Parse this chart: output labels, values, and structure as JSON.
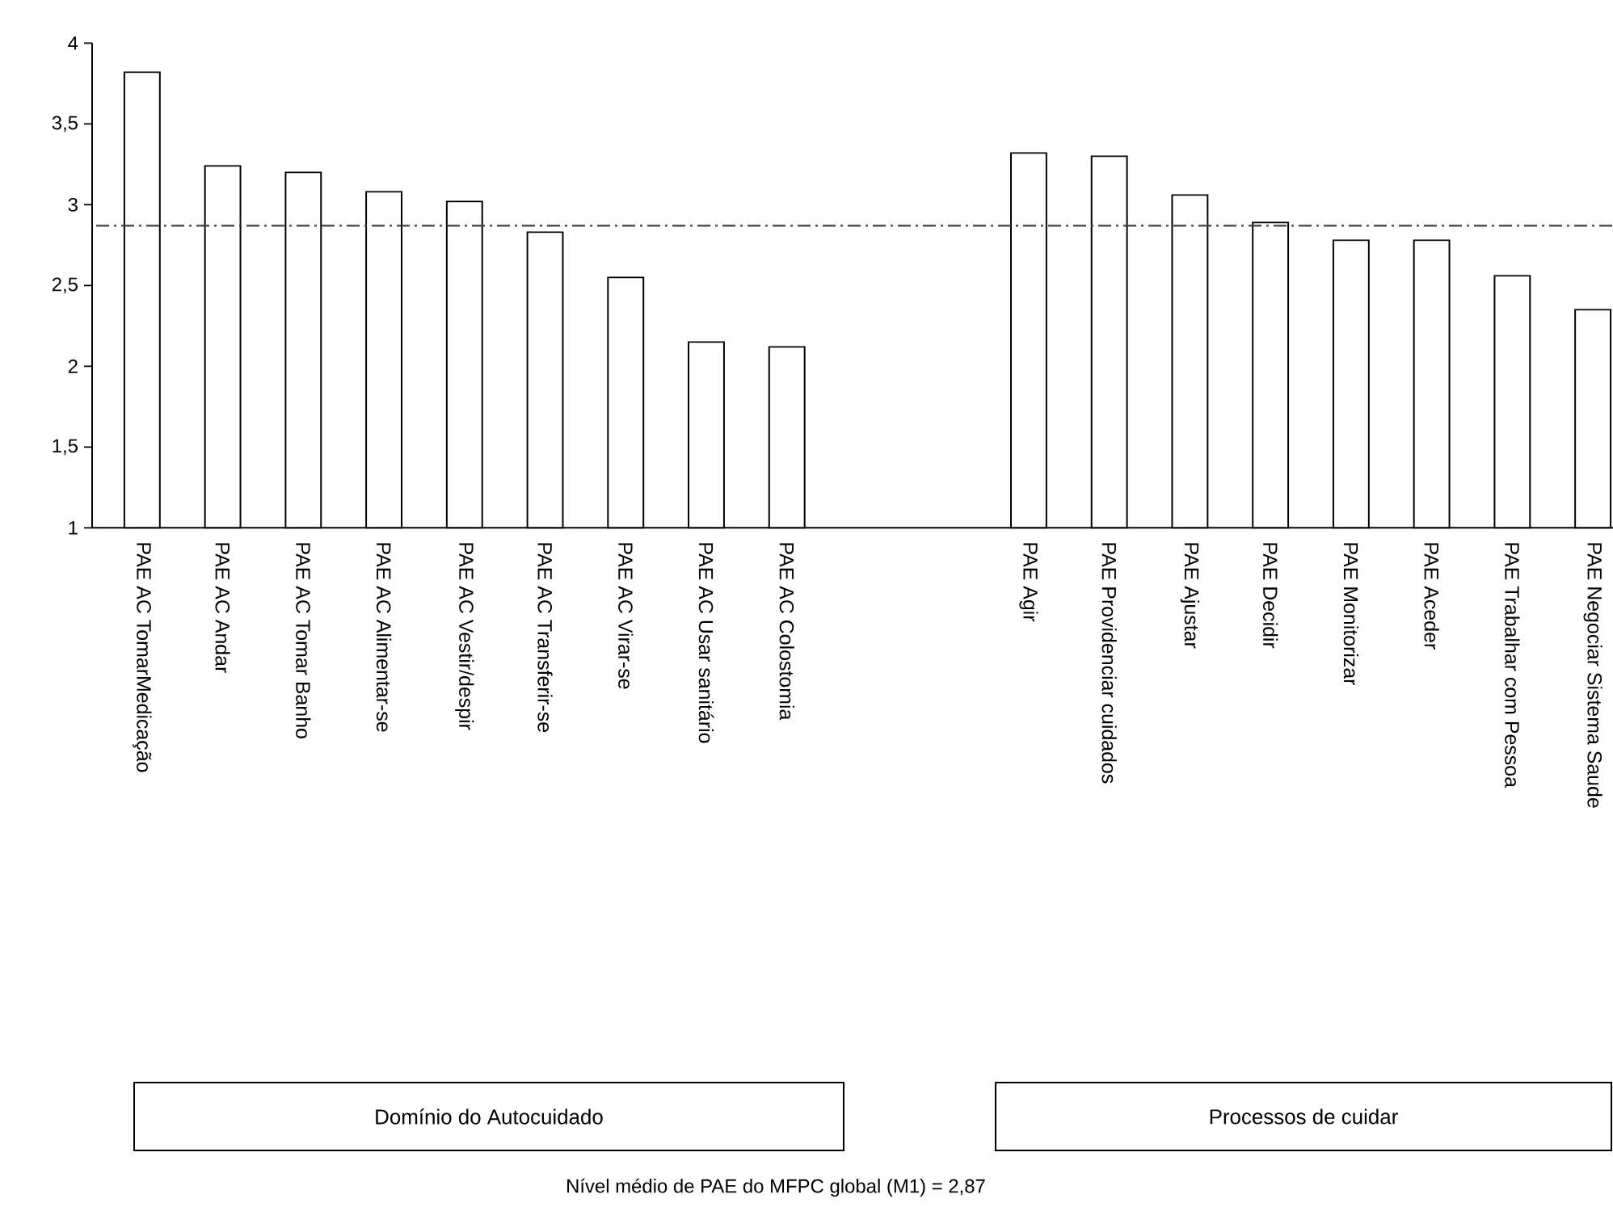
{
  "chart_data": {
    "type": "bar",
    "categories": [
      "PAE AC TomarMedicação",
      "PAE AC Andar",
      "PAE AC Tomar Banho",
      "PAE AC Alimentar-se",
      "PAE AC Vestir/despir",
      "PAE AC Transferir-se",
      "PAE AC Virar-se",
      "PAE AC Usar sanitário",
      "PAE AC Colostomia",
      null,
      null,
      "PAE Agir",
      "PAE Providenciar cuidados",
      "PAE Ajustar",
      "PAE Decidir",
      "PAE Monitorizar",
      "PAE Aceder",
      "PAE Trabalhar com Pessoa",
      "PAE Negociar Sistema Saude"
    ],
    "values": [
      3.82,
      3.24,
      3.2,
      3.08,
      3.02,
      2.83,
      2.55,
      2.15,
      2.12,
      null,
      null,
      3.32,
      3.3,
      3.06,
      2.89,
      2.78,
      2.78,
      2.56,
      2.35
    ],
    "color": "#ffffff",
    "ylim": [
      1,
      4
    ],
    "yticks": [
      1,
      {
        "value": 1.5,
        "label": "1,5"
      },
      2,
      {
        "value": 2.5,
        "label": "2,5"
      },
      3,
      {
        "value": 3.5,
        "label": "3,5"
      },
      4
    ],
    "ref_lines": [
      {
        "axis": "y",
        "value": 2.87,
        "color": "#404040",
        "line_style": "dashdotted"
      }
    ],
    "annotations": [
      "Domínio  do  Autocuidado",
      "Processos de cuidar",
      "Nível médio de PAE do MFPC  global (M1) = 2,87"
    ]
  }
}
